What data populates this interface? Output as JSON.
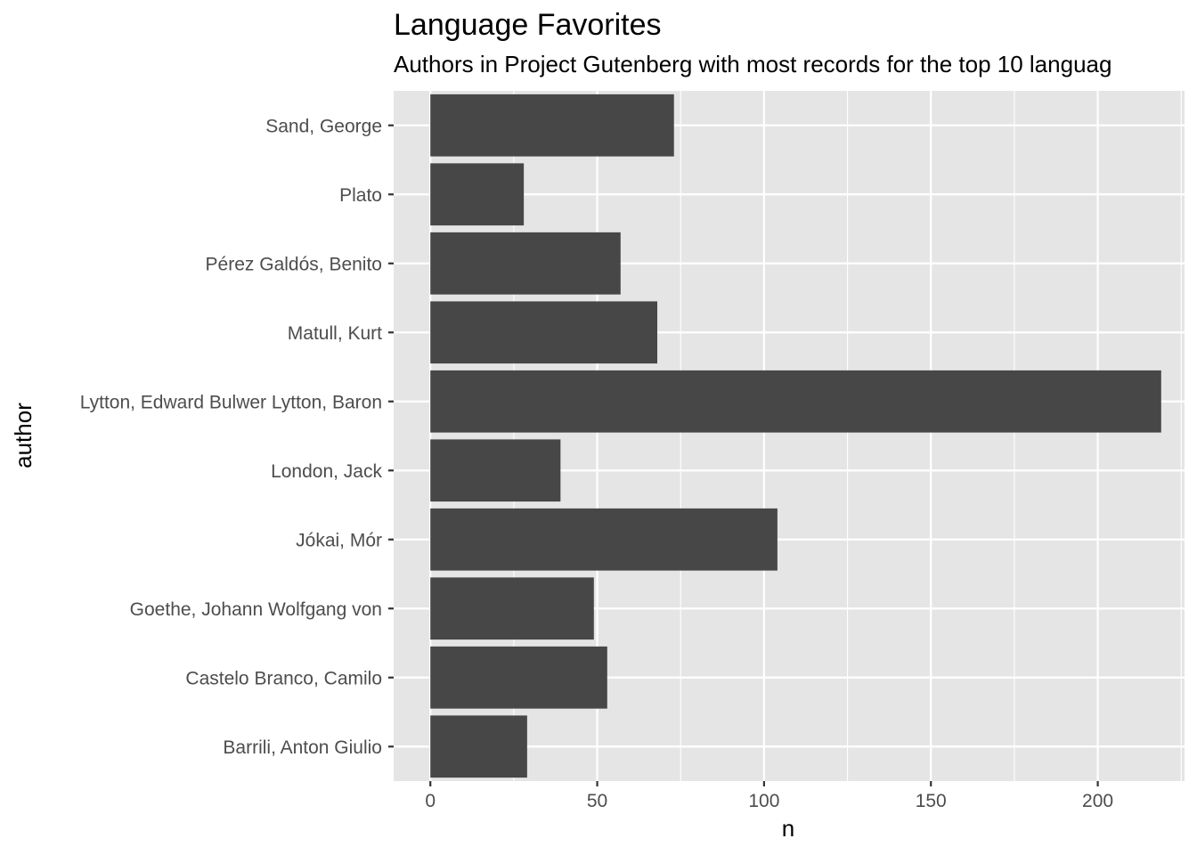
{
  "chart_data": {
    "type": "bar",
    "orientation": "horizontal",
    "title": "Language Favorites",
    "subtitle": "Authors in Project Gutenberg with most records for the top 10 languag",
    "xlabel": "n",
    "ylabel": "author",
    "categories": [
      "Sand, George",
      "Plato",
      "Pérez Galdós, Benito",
      "Matull, Kurt",
      "Lytton, Edward Bulwer Lytton, Baron",
      "London, Jack",
      "Jókai, Mór",
      "Goethe, Johann Wolfgang von",
      "Castelo Branco, Camilo",
      "Barrili, Anton Giulio"
    ],
    "values": [
      73,
      28,
      57,
      68,
      219,
      39,
      104,
      49,
      53,
      29
    ],
    "xlim": [
      -11,
      226
    ],
    "x_ticks": [
      0,
      50,
      100,
      150,
      200
    ],
    "x_tick_labels": [
      "0",
      "50",
      "100",
      "150",
      "200"
    ],
    "grid": true,
    "legend": "none",
    "colors": {
      "bar": "#474747",
      "panel": "#e5e5e5",
      "grid": "#ffffff",
      "tick_text": "#4d4d4d"
    }
  }
}
